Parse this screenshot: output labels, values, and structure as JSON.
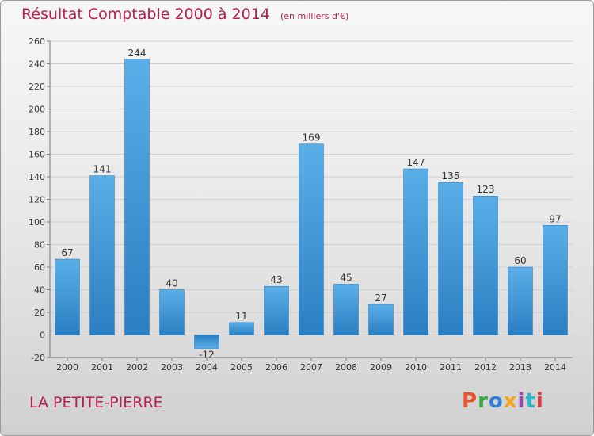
{
  "header": {
    "title": "Résultat Comptable 2000 à 2014",
    "unit": "(en milliers d'€)"
  },
  "footer": {
    "place": "LA PETITE-PIERRE",
    "brand": "Proxiti",
    "brand_colors": [
      "#e8532b",
      "#3aa845",
      "#2f7fd6",
      "#f2a71b",
      "#9a47b0",
      "#2fb6c9",
      "#d93a3a"
    ]
  },
  "colors": {
    "title": "#b52050",
    "bar_light": "#5aaee8",
    "bar_dark": "#2a7fc2"
  },
  "chart_data": {
    "type": "bar",
    "title": "Résultat Comptable 2000 à 2014",
    "categories": [
      "2000",
      "2001",
      "2002",
      "2003",
      "2004",
      "2005",
      "2006",
      "2007",
      "2008",
      "2009",
      "2010",
      "2011",
      "2012",
      "2013",
      "2014"
    ],
    "values": [
      67,
      141,
      244,
      40,
      -12,
      11,
      43,
      169,
      45,
      27,
      147,
      135,
      123,
      60,
      97
    ],
    "ylim": [
      -20,
      260
    ],
    "yticks": [
      -20,
      0,
      20,
      40,
      60,
      80,
      100,
      120,
      140,
      160,
      180,
      200,
      220,
      240,
      260
    ],
    "grid": true,
    "show_value_labels": true
  }
}
